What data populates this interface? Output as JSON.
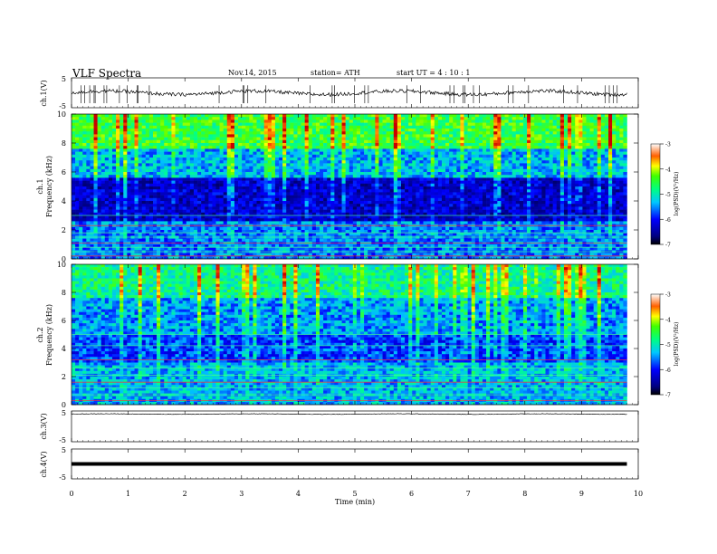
{
  "header": {
    "title": "VLF  Spectra",
    "date": "Nov.14, 2015",
    "station": "station= ATH",
    "start": "start  UT  =   4  : 10 : 1"
  },
  "panels": {
    "ch1_voltage_label": "ch.1(V)",
    "ch1_spec_label": "ch.1",
    "ch2_spec_label": "ch.2",
    "ch3_voltage_label": "ch.3(V)",
    "ch4_voltage_label": "ch.4(V)",
    "frequency_label": "Frequency (kHz)",
    "colorbar_label": "log(PSD)(V²/Hz)"
  },
  "chart_data": [
    {
      "type": "line",
      "name": "ch.1(V)",
      "ylabel": "ch.1(V)",
      "ylim": [
        -5,
        5
      ],
      "yticks": [
        "5",
        "-5"
      ],
      "x_range_min": [
        0,
        9.8
      ],
      "approx_level": 0
    },
    {
      "type": "heatmap",
      "ylabel": "Frequency (kHz)",
      "ylim": [
        0,
        10
      ],
      "yticks": [
        "0",
        "2",
        "4",
        "6",
        "8",
        "10"
      ],
      "x_range_min": [
        0,
        9.8
      ],
      "colorbar": {
        "label": "log(PSD)(V²/Hz)",
        "range": [
          -7,
          -3
        ],
        "ticks": [
          "-3",
          "-4",
          "-5",
          "-6",
          "-7"
        ]
      }
    },
    {
      "type": "heatmap",
      "ylabel": "Frequency (kHz)",
      "ylim": [
        0,
        10
      ],
      "yticks": [
        "0",
        "2",
        "4",
        "6",
        "8",
        "10"
      ],
      "x_range_min": [
        0,
        9.8
      ],
      "colorbar": {
        "label": "log(PSD)(V²/Hz)",
        "range": [
          -7,
          -3
        ],
        "ticks": [
          "-3",
          "-4",
          "-5",
          "-6",
          "-7"
        ]
      }
    },
    {
      "type": "line",
      "name": "ch.3(V)",
      "ylabel": "ch.3(V)",
      "ylim": [
        -5,
        5
      ],
      "yticks": [
        "5",
        "-5"
      ],
      "x_range_min": [
        0,
        9.8
      ],
      "approx_level": 4
    },
    {
      "type": "line",
      "name": "ch.4(V)",
      "ylabel": "ch.4(V)",
      "ylim": [
        -5,
        5
      ],
      "yticks": [
        "5",
        "-5"
      ],
      "x_range_min": [
        0,
        9.8
      ],
      "approx_level": 0
    }
  ],
  "xaxis": {
    "label": "Time  (min)",
    "xlim": [
      0,
      10
    ],
    "ticks": [
      "0",
      "1",
      "2",
      "3",
      "4",
      "5",
      "6",
      "7",
      "8",
      "9",
      "10"
    ]
  }
}
